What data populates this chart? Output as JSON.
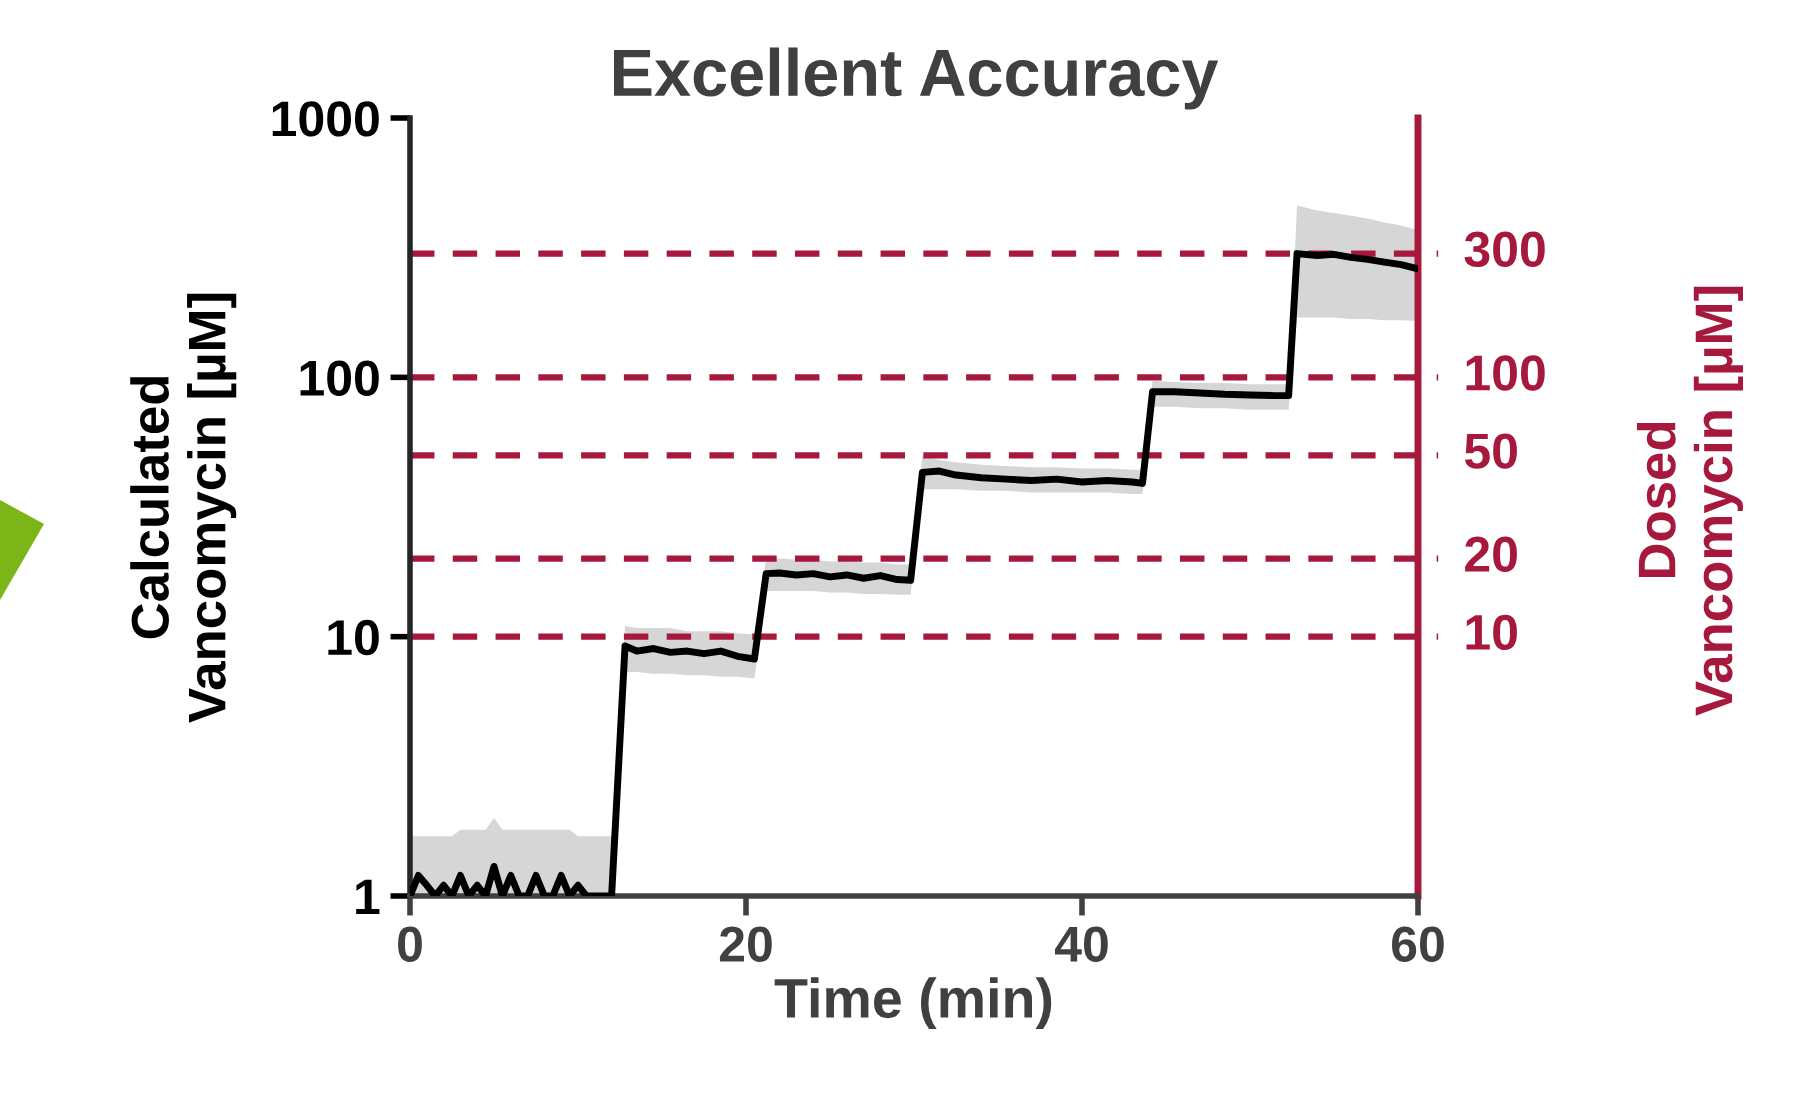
{
  "chart_data": {
    "type": "line",
    "title": "Excellent Accuracy",
    "xlabel": "Time (min)",
    "ylabel": "Calculated\nVancomycin [µM]",
    "y2label": "Dosed\nVancomycin [µM]",
    "x": [
      0,
      0.5,
      1,
      1.5,
      2,
      2.5,
      3,
      3.5,
      4,
      4.5,
      5,
      5.5,
      6,
      6.5,
      7,
      7.5,
      8,
      8.5,
      9,
      9.5,
      10,
      10.5,
      11,
      12,
      12.8,
      13.5,
      14.5,
      15.5,
      16.5,
      17.5,
      18.5,
      19.5,
      20.5,
      21.2,
      22,
      23,
      24,
      25,
      26,
      27,
      28,
      29,
      29.8,
      30.5,
      31.5,
      32.5,
      34,
      35.5,
      37,
      38.5,
      40,
      41.5,
      43,
      43.6,
      44.2,
      45.5,
      47,
      48.5,
      50,
      51.5,
      52.3,
      52.8,
      54,
      55,
      56,
      57,
      58,
      59,
      60
    ],
    "series": [
      {
        "color": "#000000",
        "values": [
          1.0,
          1.2,
          1.1,
          1.0,
          1.1,
          1.0,
          1.2,
          1.0,
          1.1,
          1.0,
          1.3,
          1.0,
          1.2,
          1.0,
          1.0,
          1.2,
          1.0,
          1.0,
          1.2,
          1.0,
          1.1,
          1.0,
          1.0,
          1.0,
          9.2,
          8.8,
          9.0,
          8.7,
          8.8,
          8.6,
          8.8,
          8.4,
          8.2,
          17.5,
          17.6,
          17.3,
          17.5,
          17.0,
          17.3,
          16.8,
          17.2,
          16.6,
          16.5,
          43,
          43.5,
          42,
          41,
          40.5,
          40,
          40.5,
          39.5,
          40,
          39.5,
          39,
          88,
          88,
          87,
          86,
          85.5,
          85,
          85,
          300,
          295,
          298,
          290,
          285,
          278,
          272,
          262
        ],
        "lower": [
          1,
          1,
          1,
          1,
          1,
          1,
          1,
          1,
          1,
          1,
          1,
          1,
          1,
          1,
          1,
          1,
          1,
          1,
          1,
          1,
          1,
          1,
          1,
          1,
          7.3,
          7.3,
          7.2,
          7.2,
          7.1,
          7.1,
          7.0,
          7.0,
          6.9,
          15,
          15,
          15,
          15,
          14.8,
          14.8,
          14.6,
          14.6,
          14.5,
          14.5,
          37,
          37,
          37,
          36.5,
          36.5,
          36,
          36,
          36,
          36,
          35.5,
          35.5,
          77,
          77,
          76,
          76,
          75,
          75,
          75,
          170,
          170,
          170,
          168,
          168,
          166,
          166,
          165
        ],
        "upper": [
          1.7,
          1.7,
          1.7,
          1.7,
          1.7,
          1.7,
          1.8,
          1.8,
          1.8,
          1.8,
          2.0,
          1.8,
          1.8,
          1.8,
          1.8,
          1.8,
          1.8,
          1.8,
          1.8,
          1.8,
          1.7,
          1.7,
          1.7,
          1.7,
          11,
          10.8,
          10.8,
          10.8,
          10.5,
          10.5,
          10.5,
          10.3,
          10.2,
          20,
          20,
          19.8,
          19.8,
          19.5,
          19.5,
          19.3,
          19.3,
          19,
          19,
          50,
          48,
          47,
          46,
          45.5,
          45,
          45,
          44.5,
          44.5,
          44,
          44,
          97,
          96,
          95,
          95,
          94,
          94,
          94,
          460,
          440,
          430,
          420,
          410,
          395,
          385,
          370
        ]
      }
    ],
    "xlim": [
      0,
      60
    ],
    "xticks": [
      0,
      20,
      40,
      60
    ],
    "log": "y",
    "ylim": [
      1,
      1000
    ],
    "yticks": [
      1,
      10,
      100,
      1000
    ],
    "ref_lines": [
      {
        "axis": "y",
        "value": 10,
        "label": "10",
        "color": "#a6193c",
        "line_style": "dashed"
      },
      {
        "axis": "y",
        "value": 20,
        "label": "20",
        "color": "#a6193c",
        "line_style": "dashed"
      },
      {
        "axis": "y",
        "value": 50,
        "label": "50",
        "color": "#a6193c",
        "line_style": "dashed"
      },
      {
        "axis": "y",
        "value": 100,
        "label": "100",
        "color": "#a6193c",
        "line_style": "dashed"
      },
      {
        "axis": "y",
        "value": 300,
        "label": "300",
        "color": "#a6193c",
        "line_style": "dashed"
      }
    ],
    "grid": false,
    "legend": false,
    "marker": "none",
    "line_style": "solid"
  }
}
